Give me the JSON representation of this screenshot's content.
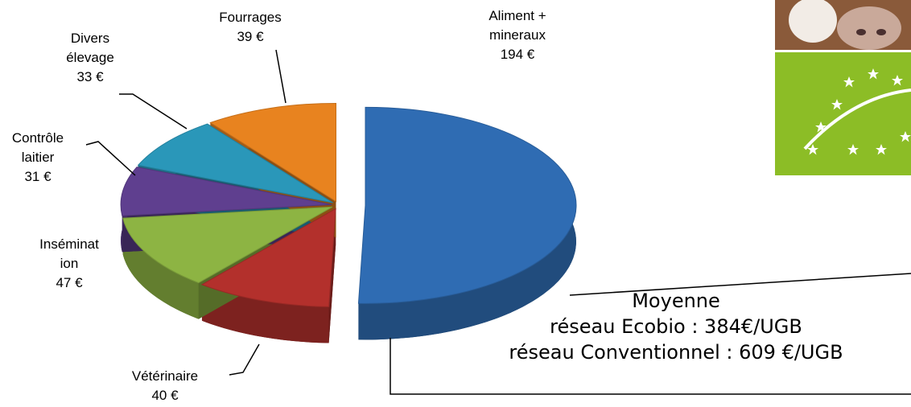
{
  "chart_data": {
    "type": "pie",
    "categories": [
      "Aliment + mineraux",
      "Vétérinaire",
      "Insémination",
      "Contrôle laitier",
      "Divers élevage",
      "Fourrages"
    ],
    "values": [
      194,
      40,
      47,
      31,
      33,
      39
    ],
    "value_labels": [
      "194 €",
      "40 €",
      "47 €",
      "31 €",
      "33 €",
      "39 €"
    ],
    "colors": [
      "#2f6cb3",
      "#b3302c",
      "#8db443",
      "#5f3f8f",
      "#2a97b9",
      "#e8831f"
    ],
    "annotation": [
      "Moyenne",
      "réseau Ecobio : 384€/UGB",
      "réseau Conventionnel : 609 €/UGB"
    ]
  }
}
